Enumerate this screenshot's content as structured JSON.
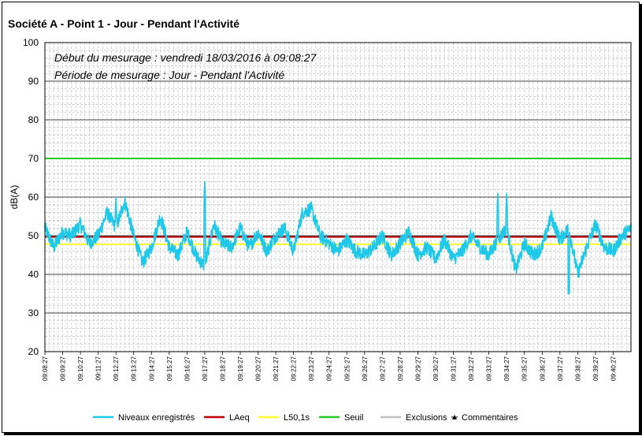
{
  "chart_title": "Société A - Point 1 - Jour - Pendant l'Activité",
  "annotations": {
    "line1": "Début du mesurage : vendredi 18/03/2016 à 09:08:27",
    "line2": "Période de mesurage : Jour - Pendant l'Activité"
  },
  "colors": {
    "levels": "#1EC8E8",
    "laeq": "#C00000",
    "l50": "#FFFF33",
    "threshold": "#22CC22",
    "exclusions": "#BFBFBF",
    "comments": "#000000"
  },
  "chart_data": {
    "type": "line",
    "title": "Société A - Point 1 - Jour - Pendant l'Activité",
    "xlabel": "",
    "ylabel": "dB(A)",
    "ylim": [
      20,
      100
    ],
    "yticks": [
      20,
      30,
      40,
      50,
      60,
      70,
      80,
      90,
      100
    ],
    "grid": true,
    "legend_position": "bottom",
    "x_tick_labels": [
      "09:08:27",
      "09:09:27",
      "09:10:27",
      "09:11:27",
      "09:12:27",
      "09:13:27",
      "09:14:27",
      "09:15:27",
      "09:16:27",
      "09:17:27",
      "09:18:27",
      "09:19:27",
      "09:20:27",
      "09:21:27",
      "09:22:27",
      "09:23:27",
      "09:24:27",
      "09:25:27",
      "09:26:27",
      "09:27:27",
      "09:28:27",
      "09:29:27",
      "09:30:27",
      "09:31:27",
      "09:32:27",
      "09:33:27",
      "09:34:27",
      "09:35:27",
      "09:36:27",
      "09:37:27",
      "09:38:27",
      "09:39:27",
      "09:40:27"
    ],
    "x_range": [
      "09:08:27",
      "09:41:27"
    ],
    "series": [
      {
        "name": "Niveaux enregistrés",
        "color": "#1EC8E8",
        "x": [
          "09:08:27",
          "09:08:57",
          "09:09:27",
          "09:09:57",
          "09:10:27",
          "09:10:57",
          "09:11:27",
          "09:11:57",
          "09:12:27",
          "09:12:57",
          "09:13:27",
          "09:13:57",
          "09:14:27",
          "09:14:57",
          "09:15:27",
          "09:15:57",
          "09:16:27",
          "09:16:57",
          "09:17:27",
          "09:17:57",
          "09:18:27",
          "09:18:57",
          "09:19:27",
          "09:19:57",
          "09:20:27",
          "09:20:57",
          "09:21:27",
          "09:21:57",
          "09:22:27",
          "09:22:57",
          "09:23:27",
          "09:23:57",
          "09:24:27",
          "09:24:57",
          "09:25:27",
          "09:25:57",
          "09:26:27",
          "09:26:57",
          "09:27:27",
          "09:27:57",
          "09:28:27",
          "09:28:57",
          "09:29:27",
          "09:29:57",
          "09:30:27",
          "09:30:57",
          "09:31:27",
          "09:31:57",
          "09:32:27",
          "09:32:57",
          "09:33:27",
          "09:33:57",
          "09:34:27",
          "09:34:57",
          "09:35:27",
          "09:35:57",
          "09:36:27",
          "09:36:57",
          "09:37:27",
          "09:37:57",
          "09:38:27",
          "09:38:57",
          "09:39:27",
          "09:39:57",
          "09:40:27",
          "09:40:57",
          "09:41:27"
        ],
        "values": [
          52,
          47,
          51,
          50,
          53,
          48,
          50,
          56,
          52,
          59,
          50,
          43,
          47,
          55,
          47,
          45,
          51,
          45,
          42,
          53,
          48,
          47,
          52,
          47,
          51,
          46,
          50,
          52,
          46,
          56,
          57,
          50,
          48,
          46,
          49,
          46,
          45,
          47,
          50,
          45,
          48,
          51,
          45,
          47,
          44,
          49,
          44,
          46,
          50,
          47,
          45,
          49,
          52,
          41,
          48,
          45,
          47,
          55,
          49,
          52,
          40,
          47,
          53,
          47,
          46,
          50,
          52
        ]
      },
      {
        "name": "LAeq",
        "color": "#C00000",
        "constant": 49.7
      },
      {
        "name": "L50,1s",
        "color": "#FFFF33",
        "constant": 47.8
      },
      {
        "name": "Seuil",
        "color": "#22CC22",
        "constant": 70
      },
      {
        "name": "Exclusions",
        "color": "#BFBFBF"
      },
      {
        "name": "Commentaires",
        "color": "#000000",
        "marker": "triangle"
      }
    ],
    "peaks": [
      {
        "x": "09:17:27",
        "y": 64
      },
      {
        "x": "09:33:57",
        "y": 61
      },
      {
        "x": "09:34:27",
        "y": 61
      },
      {
        "x": "09:12:27",
        "y": 60
      },
      {
        "x": "09:37:57",
        "y": 39
      }
    ]
  },
  "legend": [
    {
      "label": "Niveaux enregistrés",
      "color": "#1EC8E8",
      "marker": ""
    },
    {
      "label": "LAeq",
      "color": "#C00000",
      "marker": ""
    },
    {
      "label": "L50,1s",
      "color": "#FFFF33",
      "marker": ""
    },
    {
      "label": "Seuil",
      "color": "#22CC22",
      "marker": ""
    },
    {
      "label": "Exclusions",
      "color": "#BFBFBF",
      "marker": ""
    },
    {
      "label": "Commentaires",
      "color": "#000000",
      "marker": "triangle"
    }
  ]
}
